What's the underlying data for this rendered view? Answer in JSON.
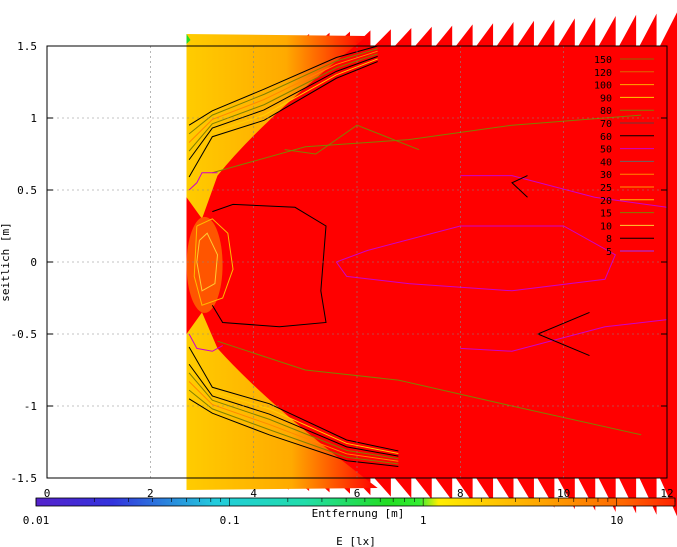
{
  "chart_data": {
    "type": "heatmap",
    "title": "",
    "xlabel": "Entfernung [m]",
    "ylabel": "seitlich [m]",
    "xlim": [
      0,
      12
    ],
    "ylim": [
      -1.5,
      1.5
    ],
    "x_ticks": [
      {
        "v": 0,
        "label": "0"
      },
      {
        "v": 2,
        "label": "2"
      },
      {
        "v": 4,
        "label": "4"
      },
      {
        "v": 6,
        "label": "6"
      },
      {
        "v": 8,
        "label": "8"
      },
      {
        "v": 10,
        "label": "10"
      },
      {
        "v": 12,
        "label": "12"
      }
    ],
    "y_ticks": [
      {
        "v": 1.5,
        "label": "1.5"
      },
      {
        "v": 1,
        "label": "1"
      },
      {
        "v": 0.5,
        "label": "0.5"
      },
      {
        "v": 0,
        "label": "0"
      },
      {
        "v": -0.5,
        "label": "-0.5"
      },
      {
        "v": -1,
        "label": "-1"
      },
      {
        "v": -1.5,
        "label": "-1.5"
      }
    ],
    "grid": true,
    "data_start_x": 2.7,
    "colorbar": {
      "label": "E [lx]",
      "scale": "log",
      "range": [
        0.01,
        20
      ],
      "ticks": [
        {
          "v": 0.01,
          "label": "0.01"
        },
        {
          "v": 0.1,
          "label": "0.1"
        },
        {
          "v": 1,
          "label": "1"
        },
        {
          "v": 10,
          "label": "10"
        }
      ]
    },
    "contour_levels": [
      150,
      120,
      100,
      90,
      80,
      70,
      60,
      50,
      40,
      30,
      25,
      20,
      15,
      10,
      8,
      5
    ],
    "contour_colors": [
      "#8a6a00",
      "#dd6600",
      "#ffaa00",
      "#ffcc00",
      "#808000",
      "#6b3a3a",
      "#000000",
      "#cc00cc",
      "#666666",
      "#ff8800",
      "#ff9900",
      "#ffbb00",
      "#808000",
      "#ffcc33",
      "#000000",
      "#9933ff"
    ],
    "legend_position": "top-right",
    "colors": {
      "field": "#ff0000",
      "field_edge": "#ff4400",
      "near_field": "#ffcc00"
    }
  }
}
